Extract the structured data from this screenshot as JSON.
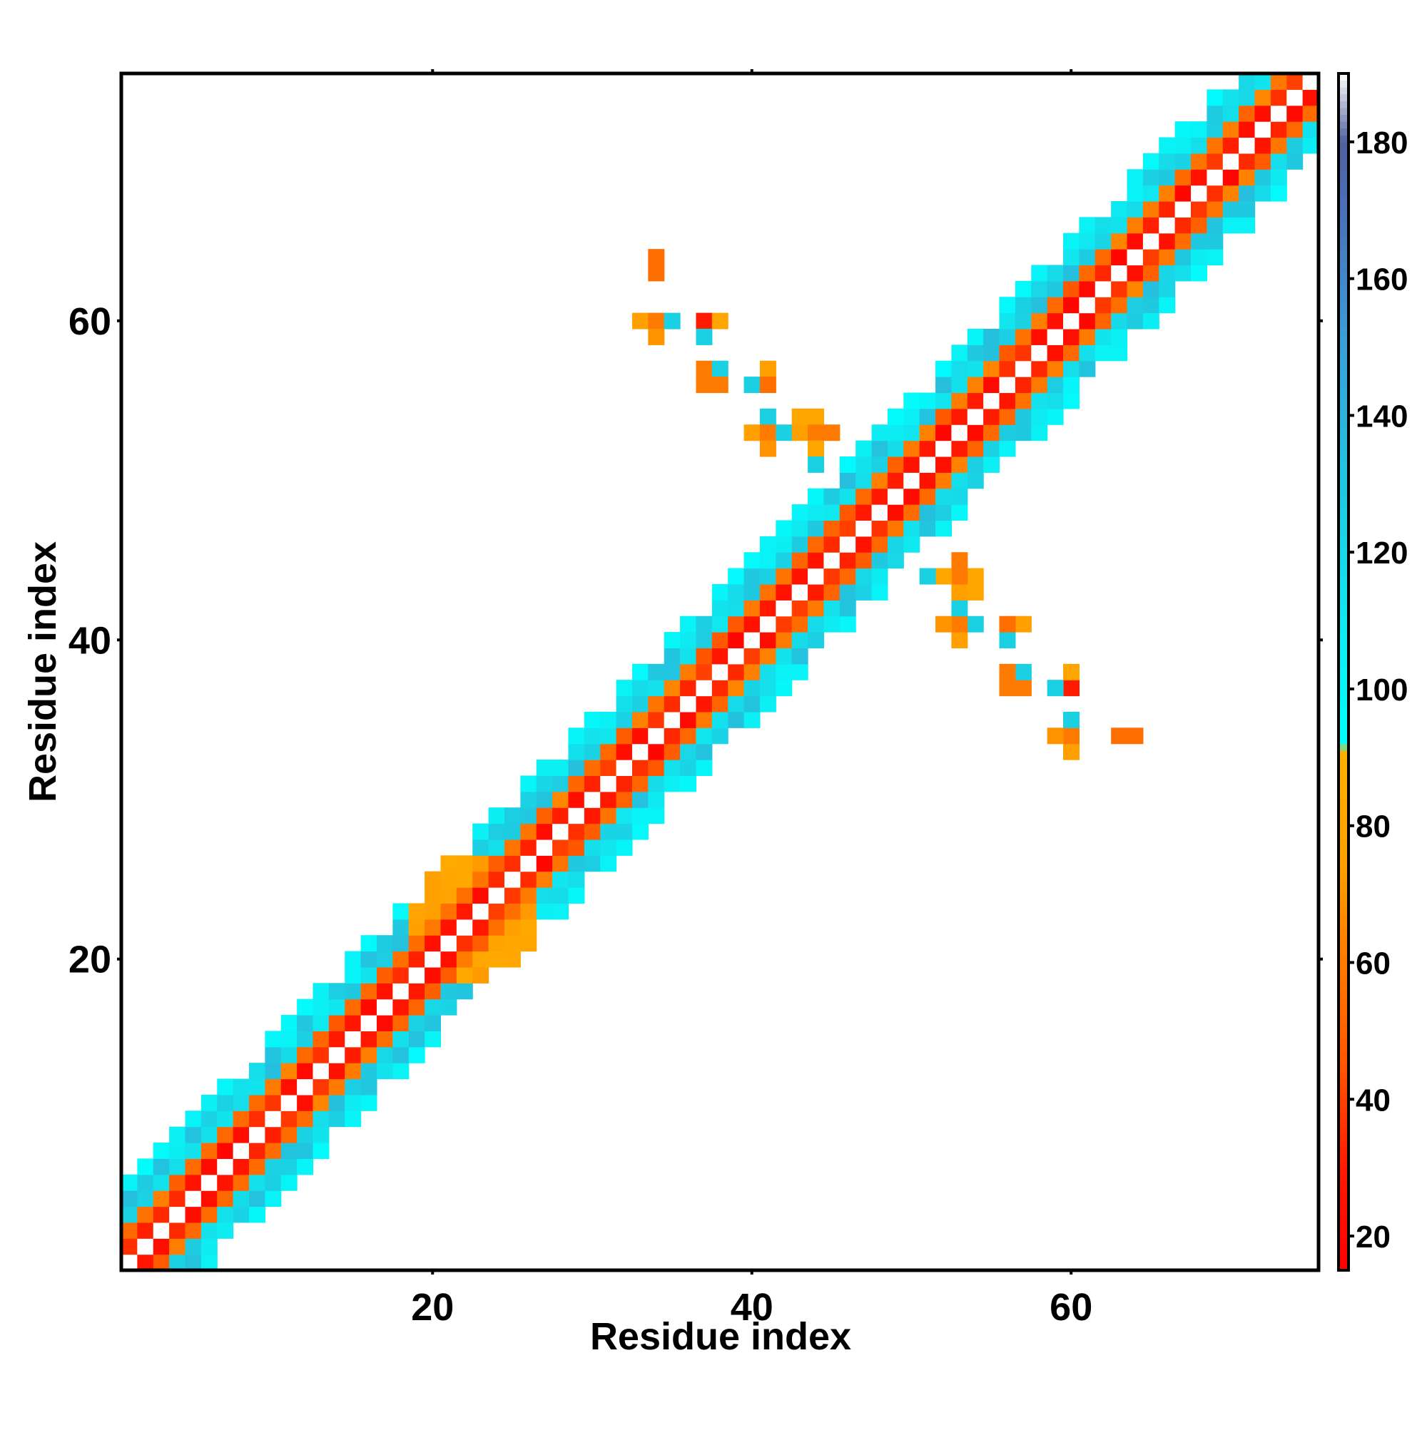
{
  "chart_data": {
    "type": "heatmap",
    "title": "",
    "xlabel": "Residue index",
    "ylabel": "Residue index",
    "x_range": [
      1,
      75
    ],
    "y_range": [
      1,
      75
    ],
    "x_ticks": [
      20,
      40,
      60
    ],
    "y_ticks": [
      20,
      40,
      60
    ],
    "colorbar": {
      "range": [
        15,
        190
      ],
      "ticks": [
        20,
        40,
        60,
        80,
        100,
        120,
        140,
        160,
        180
      ],
      "stops": [
        {
          "value": 15,
          "color": "#ff0000"
        },
        {
          "value": 30,
          "color": "#ff1a00"
        },
        {
          "value": 45,
          "color": "#ff5500"
        },
        {
          "value": 60,
          "color": "#ff7a00"
        },
        {
          "value": 75,
          "color": "#ffa000"
        },
        {
          "value": 91,
          "color": "#ffb000"
        },
        {
          "value": 92,
          "color": "#00ffff"
        },
        {
          "value": 110,
          "color": "#10e8f0"
        },
        {
          "value": 130,
          "color": "#20c8e0"
        },
        {
          "value": 150,
          "color": "#3aa0d8"
        },
        {
          "value": 170,
          "color": "#4a70b8"
        },
        {
          "value": 180,
          "color": "#5060a0"
        },
        {
          "value": 190,
          "color": "#ffffff"
        }
      ]
    },
    "value_model": "Values grow with |i-j| along the diagonal band (~20 at offset 1, ~50 at offset 2, ~110-130 at offsets 3-4, ~100 at offset 5). Self-pairs (i=j) are 190 (white). Off-band contacts listed below.",
    "band_halfwidth": 5,
    "diagonal_value": 190,
    "extra_cells": [
      {
        "x": 34,
        "y": 64,
        "v": 55
      },
      {
        "x": 33,
        "y": 60,
        "v": 60
      },
      {
        "x": 34,
        "y": 60,
        "v": 60
      },
      {
        "x": 35,
        "y": 60,
        "v": 125
      },
      {
        "x": 37,
        "y": 60,
        "v": 40
      },
      {
        "x": 38,
        "y": 60,
        "v": 70
      },
      {
        "x": 34,
        "y": 59,
        "v": 75
      },
      {
        "x": 37,
        "y": 59,
        "v": 120
      },
      {
        "x": 37,
        "y": 57,
        "v": 70
      },
      {
        "x": 38,
        "y": 57,
        "v": 125
      },
      {
        "x": 41,
        "y": 57,
        "v": 80
      },
      {
        "x": 37,
        "y": 56,
        "v": 60
      },
      {
        "x": 38,
        "y": 56,
        "v": 60
      },
      {
        "x": 40,
        "y": 56,
        "v": 125
      },
      {
        "x": 41,
        "y": 56,
        "v": 55
      },
      {
        "x": 41,
        "y": 54,
        "v": 125
      },
      {
        "x": 44,
        "y": 54,
        "v": 80
      },
      {
        "x": 40,
        "y": 53,
        "v": 60
      },
      {
        "x": 41,
        "y": 53,
        "v": 70
      },
      {
        "x": 42,
        "y": 53,
        "v": 130
      },
      {
        "x": 43,
        "y": 53,
        "v": 125
      },
      {
        "x": 44,
        "y": 53,
        "v": 50
      },
      {
        "x": 45,
        "y": 53,
        "v": 60
      },
      {
        "x": 41,
        "y": 52,
        "v": 75
      },
      {
        "x": 44,
        "y": 52,
        "v": 125
      },
      {
        "x": 44,
        "y": 51,
        "v": 125
      },
      {
        "x": 52,
        "y": 44,
        "v": 80
      },
      {
        "x": 53,
        "y": 44,
        "v": 60
      },
      {
        "x": 53,
        "y": 43,
        "v": 75
      },
      {
        "x": 54,
        "y": 43,
        "v": 80
      },
      {
        "x": 53,
        "y": 42,
        "v": 125
      },
      {
        "x": 52,
        "y": 41,
        "v": 70
      },
      {
        "x": 53,
        "y": 41,
        "v": 60
      },
      {
        "x": 54,
        "y": 41,
        "v": 125
      },
      {
        "x": 56,
        "y": 41,
        "v": 55
      },
      {
        "x": 57,
        "y": 41,
        "v": 75
      },
      {
        "x": 53,
        "y": 40,
        "v": 75
      },
      {
        "x": 56,
        "y": 40,
        "v": 125
      },
      {
        "x": 56,
        "y": 38,
        "v": 60
      },
      {
        "x": 57,
        "y": 38,
        "v": 125
      },
      {
        "x": 60,
        "y": 38,
        "v": 80
      },
      {
        "x": 56,
        "y": 37,
        "v": 60
      },
      {
        "x": 57,
        "y": 37,
        "v": 60
      },
      {
        "x": 59,
        "y": 37,
        "v": 125
      },
      {
        "x": 60,
        "y": 37,
        "v": 30
      },
      {
        "x": 60,
        "y": 35,
        "v": 125
      },
      {
        "x": 59,
        "y": 34,
        "v": 70
      },
      {
        "x": 60,
        "y": 34,
        "v": 60
      },
      {
        "x": 63,
        "y": 34,
        "v": 55
      },
      {
        "x": 60,
        "y": 33,
        "v": 75
      }
    ]
  }
}
